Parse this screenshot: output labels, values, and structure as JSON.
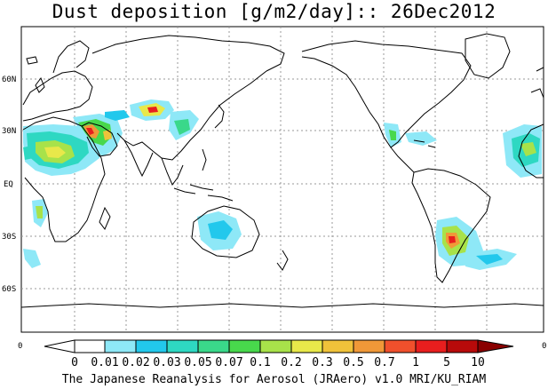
{
  "title": "Dust deposition [g/m2/day]:: 26Dec2012",
  "footer": "The Japanese Reanalysis for Aerosol (JRAero) v1.0 MRI/KU_RIAM",
  "latitude_labels": [
    "60N",
    "30N",
    "EQ",
    "30S",
    "60S"
  ],
  "colorbar": {
    "end_labels": [
      "0",
      "0"
    ],
    "levels": [
      "0",
      "0.01",
      "0.02",
      "0.03",
      "0.05",
      "0.07",
      "0.1",
      "0.2",
      "0.3",
      "0.5",
      "0.7",
      "1",
      "5",
      "10"
    ],
    "colors": [
      "#ffffff",
      "#ffffff",
      "#8ee8f7",
      "#22c8ec",
      "#2ed8c2",
      "#3ad88a",
      "#48d84c",
      "#a8e24a",
      "#e8e84a",
      "#f0c23a",
      "#f09838",
      "#f0502c",
      "#e81e1e",
      "#b80a0a",
      "#8a0000"
    ]
  }
}
